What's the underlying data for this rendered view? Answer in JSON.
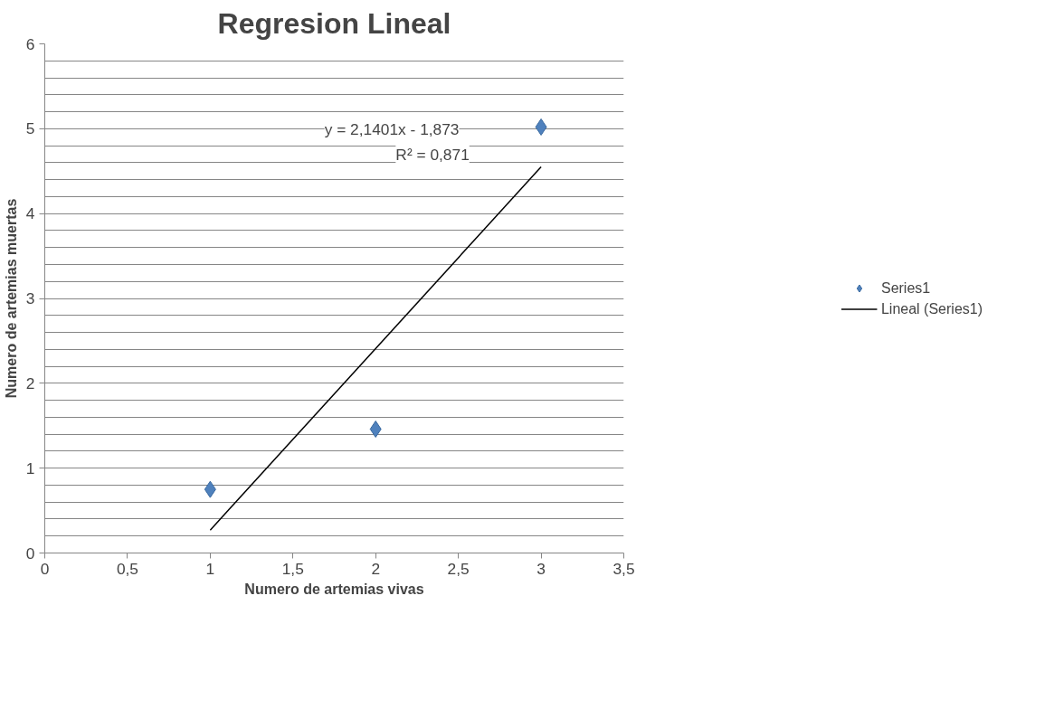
{
  "chart_data": {
    "type": "scatter",
    "title": "Regresion Lineal",
    "xlabel": "Numero de artemias vivas",
    "ylabel": "Numero de artemias muertas",
    "xlim": [
      0,
      3.5
    ],
    "xticks": [
      0,
      {
        "value": 0.5,
        "label": "0,5"
      },
      1,
      {
        "value": 1.5,
        "label": "1,5"
      },
      2,
      {
        "value": 2.5,
        "label": "2,5"
      },
      3,
      {
        "value": 3.5,
        "label": "3,5"
      }
    ],
    "ylim": [
      0,
      6
    ],
    "yticks": [
      0,
      1,
      2,
      3,
      4,
      5,
      6
    ],
    "grid": "y",
    "legend": "right",
    "series": [
      {
        "name": "Series1",
        "color": "#4f81bd",
        "marker": "diamond",
        "x": [
          1,
          2,
          3
        ],
        "values": [
          0.75,
          1.46,
          5.02
        ]
      },
      {
        "name": "Lineal (Series1)",
        "type": "line",
        "marker": "none",
        "color": "#000000",
        "x": [
          1,
          3
        ],
        "values": [
          0.27,
          4.55
        ],
        "line_style": "solid"
      }
    ],
    "annotations": [
      "y = 2,1401x - 1,873",
      "R² = 0,871"
    ]
  }
}
